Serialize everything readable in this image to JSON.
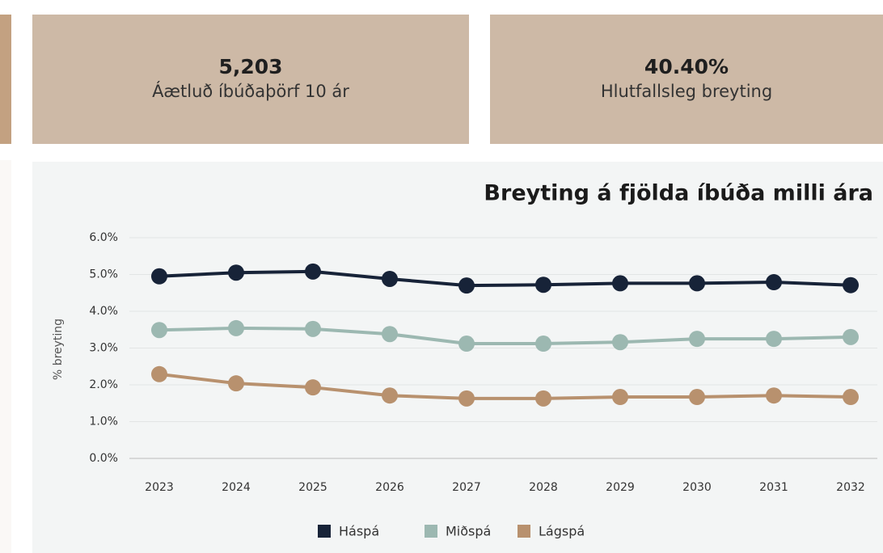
{
  "cards": [
    {
      "value": "5,203",
      "label": "Áætluð íbúðaþörf 10 ár"
    },
    {
      "value": "40.40%",
      "label": "Hlutfallsleg breyting"
    }
  ],
  "chart_data": {
    "type": "line",
    "title": "Breyting á fjölda íbúða milli ára",
    "y_label": "% breyting",
    "categories": [
      "2023",
      "2024",
      "2025",
      "2026",
      "2027",
      "2028",
      "2029",
      "2030",
      "2031",
      "2032"
    ],
    "series": [
      {
        "name": "Háspá",
        "color": "#172338",
        "values": [
          4.95,
          5.05,
          5.08,
          4.88,
          4.7,
          4.72,
          4.76,
          4.76,
          4.79,
          4.71
        ]
      },
      {
        "name": "Miðspá",
        "color": "#9cb8b1",
        "values": [
          3.49,
          3.54,
          3.52,
          3.38,
          3.12,
          3.12,
          3.16,
          3.25,
          3.25,
          3.3
        ]
      },
      {
        "name": "Lágspá",
        "color": "#b8916e",
        "values": [
          2.29,
          2.04,
          1.93,
          1.71,
          1.63,
          1.63,
          1.67,
          1.67,
          1.71,
          1.67
        ]
      }
    ],
    "ylim": [
      0,
      6
    ],
    "yticks": [
      {
        "value": 0,
        "label": "0.0%"
      },
      {
        "value": 1,
        "label": "1.0%"
      },
      {
        "value": 2,
        "label": "2.0%"
      },
      {
        "value": 3,
        "label": "3.0%"
      },
      {
        "value": 4,
        "label": "4.0%"
      },
      {
        "value": 5,
        "label": "5.0%"
      },
      {
        "value": 6,
        "label": "6.0%"
      }
    ],
    "grid": true,
    "legend": "bottom"
  }
}
